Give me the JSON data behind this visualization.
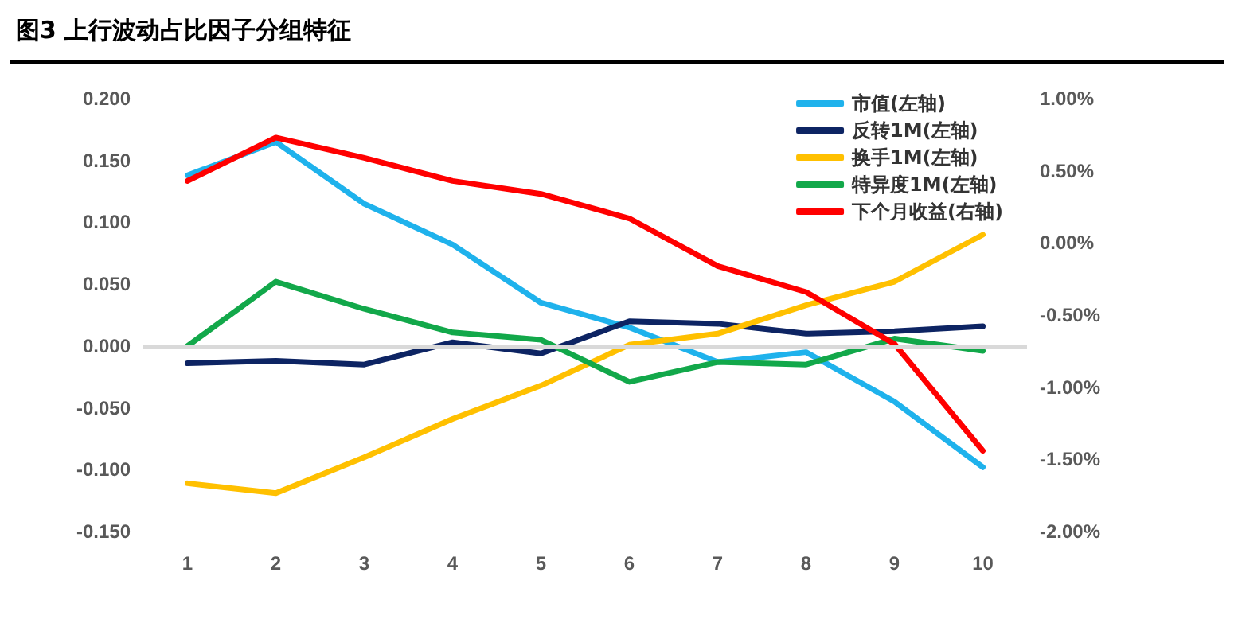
{
  "chart_data": {
    "type": "line",
    "title": "图3  上行波动占比因子分组特征",
    "categories": [
      "1",
      "2",
      "3",
      "4",
      "5",
      "6",
      "7",
      "8",
      "9",
      "10"
    ],
    "series": [
      {
        "name": "市值(左轴)",
        "color": "#1fb2ec",
        "values": [
          0.138,
          0.165,
          0.115,
          0.082,
          0.035,
          0.015,
          -0.013,
          -0.005,
          -0.045,
          -0.098
        ]
      },
      {
        "name": "反转1M(左轴)",
        "color": "#0d2463",
        "values": [
          -0.014,
          -0.012,
          -0.015,
          0.003,
          -0.006,
          0.02,
          0.018,
          0.01,
          0.012,
          0.016
        ]
      },
      {
        "name": "换手1M(左轴)",
        "color": "#ffc000",
        "values": [
          -0.111,
          -0.119,
          -0.09,
          -0.059,
          -0.032,
          0.001,
          0.01,
          0.033,
          0.052,
          0.09
        ]
      },
      {
        "name": "特异度1M(左轴)",
        "color": "#12a84a",
        "values": [
          0.0,
          0.052,
          0.03,
          0.011,
          0.005,
          -0.029,
          -0.013,
          -0.015,
          0.006,
          -0.004
        ]
      },
      {
        "name": "下个月收益(右轴)",
        "color": "#ff0000",
        "axis": "y2",
        "values": [
          0.43,
          0.73,
          0.59,
          0.43,
          0.34,
          0.17,
          -0.16,
          -0.34,
          -0.7,
          -1.44
        ]
      }
    ],
    "ylim": [
      -0.15,
      0.2
    ],
    "yticks": [
      {
        "value": -0.15,
        "label": "-0.150"
      },
      {
        "value": -0.1,
        "label": "-0.100"
      },
      {
        "value": -0.05,
        "label": "-0.050"
      },
      {
        "value": 0,
        "label": "0.000"
      },
      {
        "value": 0.05,
        "label": "0.050"
      },
      {
        "value": 0.1,
        "label": "0.100"
      },
      {
        "value": 0.15,
        "label": "0.150"
      },
      {
        "value": 0.2,
        "label": "0.200"
      }
    ],
    "y2lim": [
      -2,
      1
    ],
    "y2ticks": [
      {
        "value": -2,
        "label": "-2.00%"
      },
      {
        "value": -1.5,
        "label": "-1.50%"
      },
      {
        "value": -1,
        "label": "-1.00%"
      },
      {
        "value": -0.5,
        "label": "-0.50%"
      },
      {
        "value": 0,
        "label": "0.00%"
      },
      {
        "value": 0.5,
        "label": "0.50%"
      },
      {
        "value": 1,
        "label": "1.00%"
      }
    ],
    "ref_lines": [
      {
        "axis": "y",
        "value": 0,
        "color": "#d9d9d9"
      }
    ],
    "legend": "top right",
    "marker": "none",
    "line_style": "solid"
  }
}
